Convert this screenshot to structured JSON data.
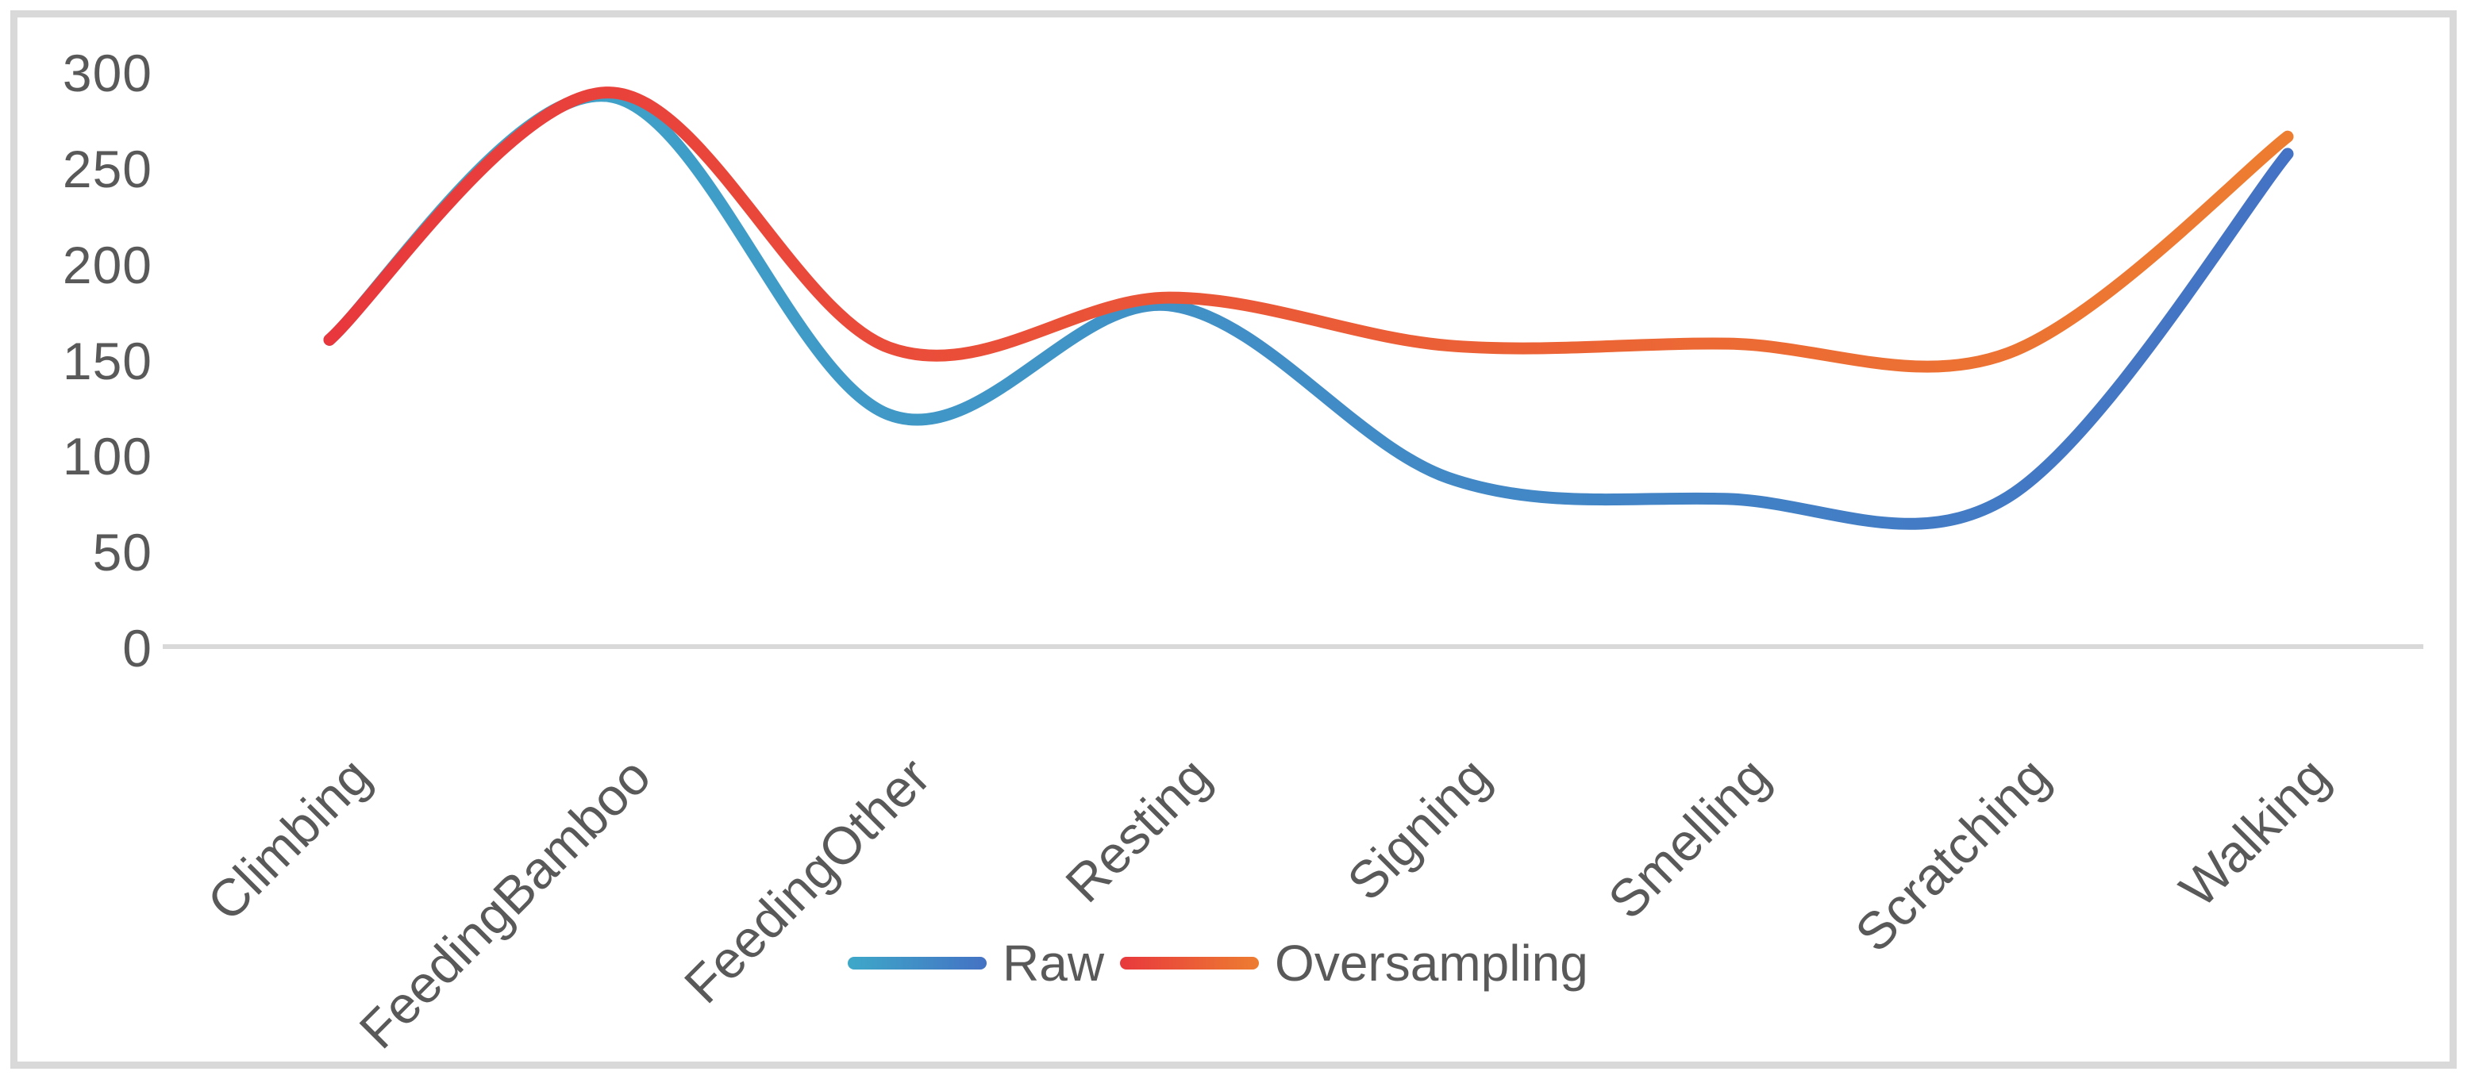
{
  "chart_data": {
    "type": "line",
    "smooth": true,
    "grid": false,
    "legend_position": "bottom-center",
    "categories": [
      "Climbing",
      "FeedingBamboo",
      "FeedingOther",
      "Resting",
      "Signing",
      "Smelling",
      "Scratching",
      "Walking"
    ],
    "series": [
      {
        "name": "Raw",
        "values": [
          160,
          287,
          121,
          178,
          88,
          77,
          78,
          257
        ],
        "color_start": "#3EA8C8",
        "color_end": "#4472C4"
      },
      {
        "name": "Oversampling",
        "values": [
          160,
          289,
          156,
          182,
          157,
          158,
          153,
          266
        ],
        "color_start": "#E8383D",
        "color_end": "#ED7D31"
      }
    ],
    "ylim": [
      0,
      300
    ],
    "yticks": [
      "0",
      "50",
      "100",
      "150",
      "200",
      "250",
      "300"
    ]
  },
  "colors": {
    "axis_line": "#D9D9D9",
    "frame_border": "#D9D9D9",
    "text": "#595959",
    "background": "#FFFFFF"
  }
}
